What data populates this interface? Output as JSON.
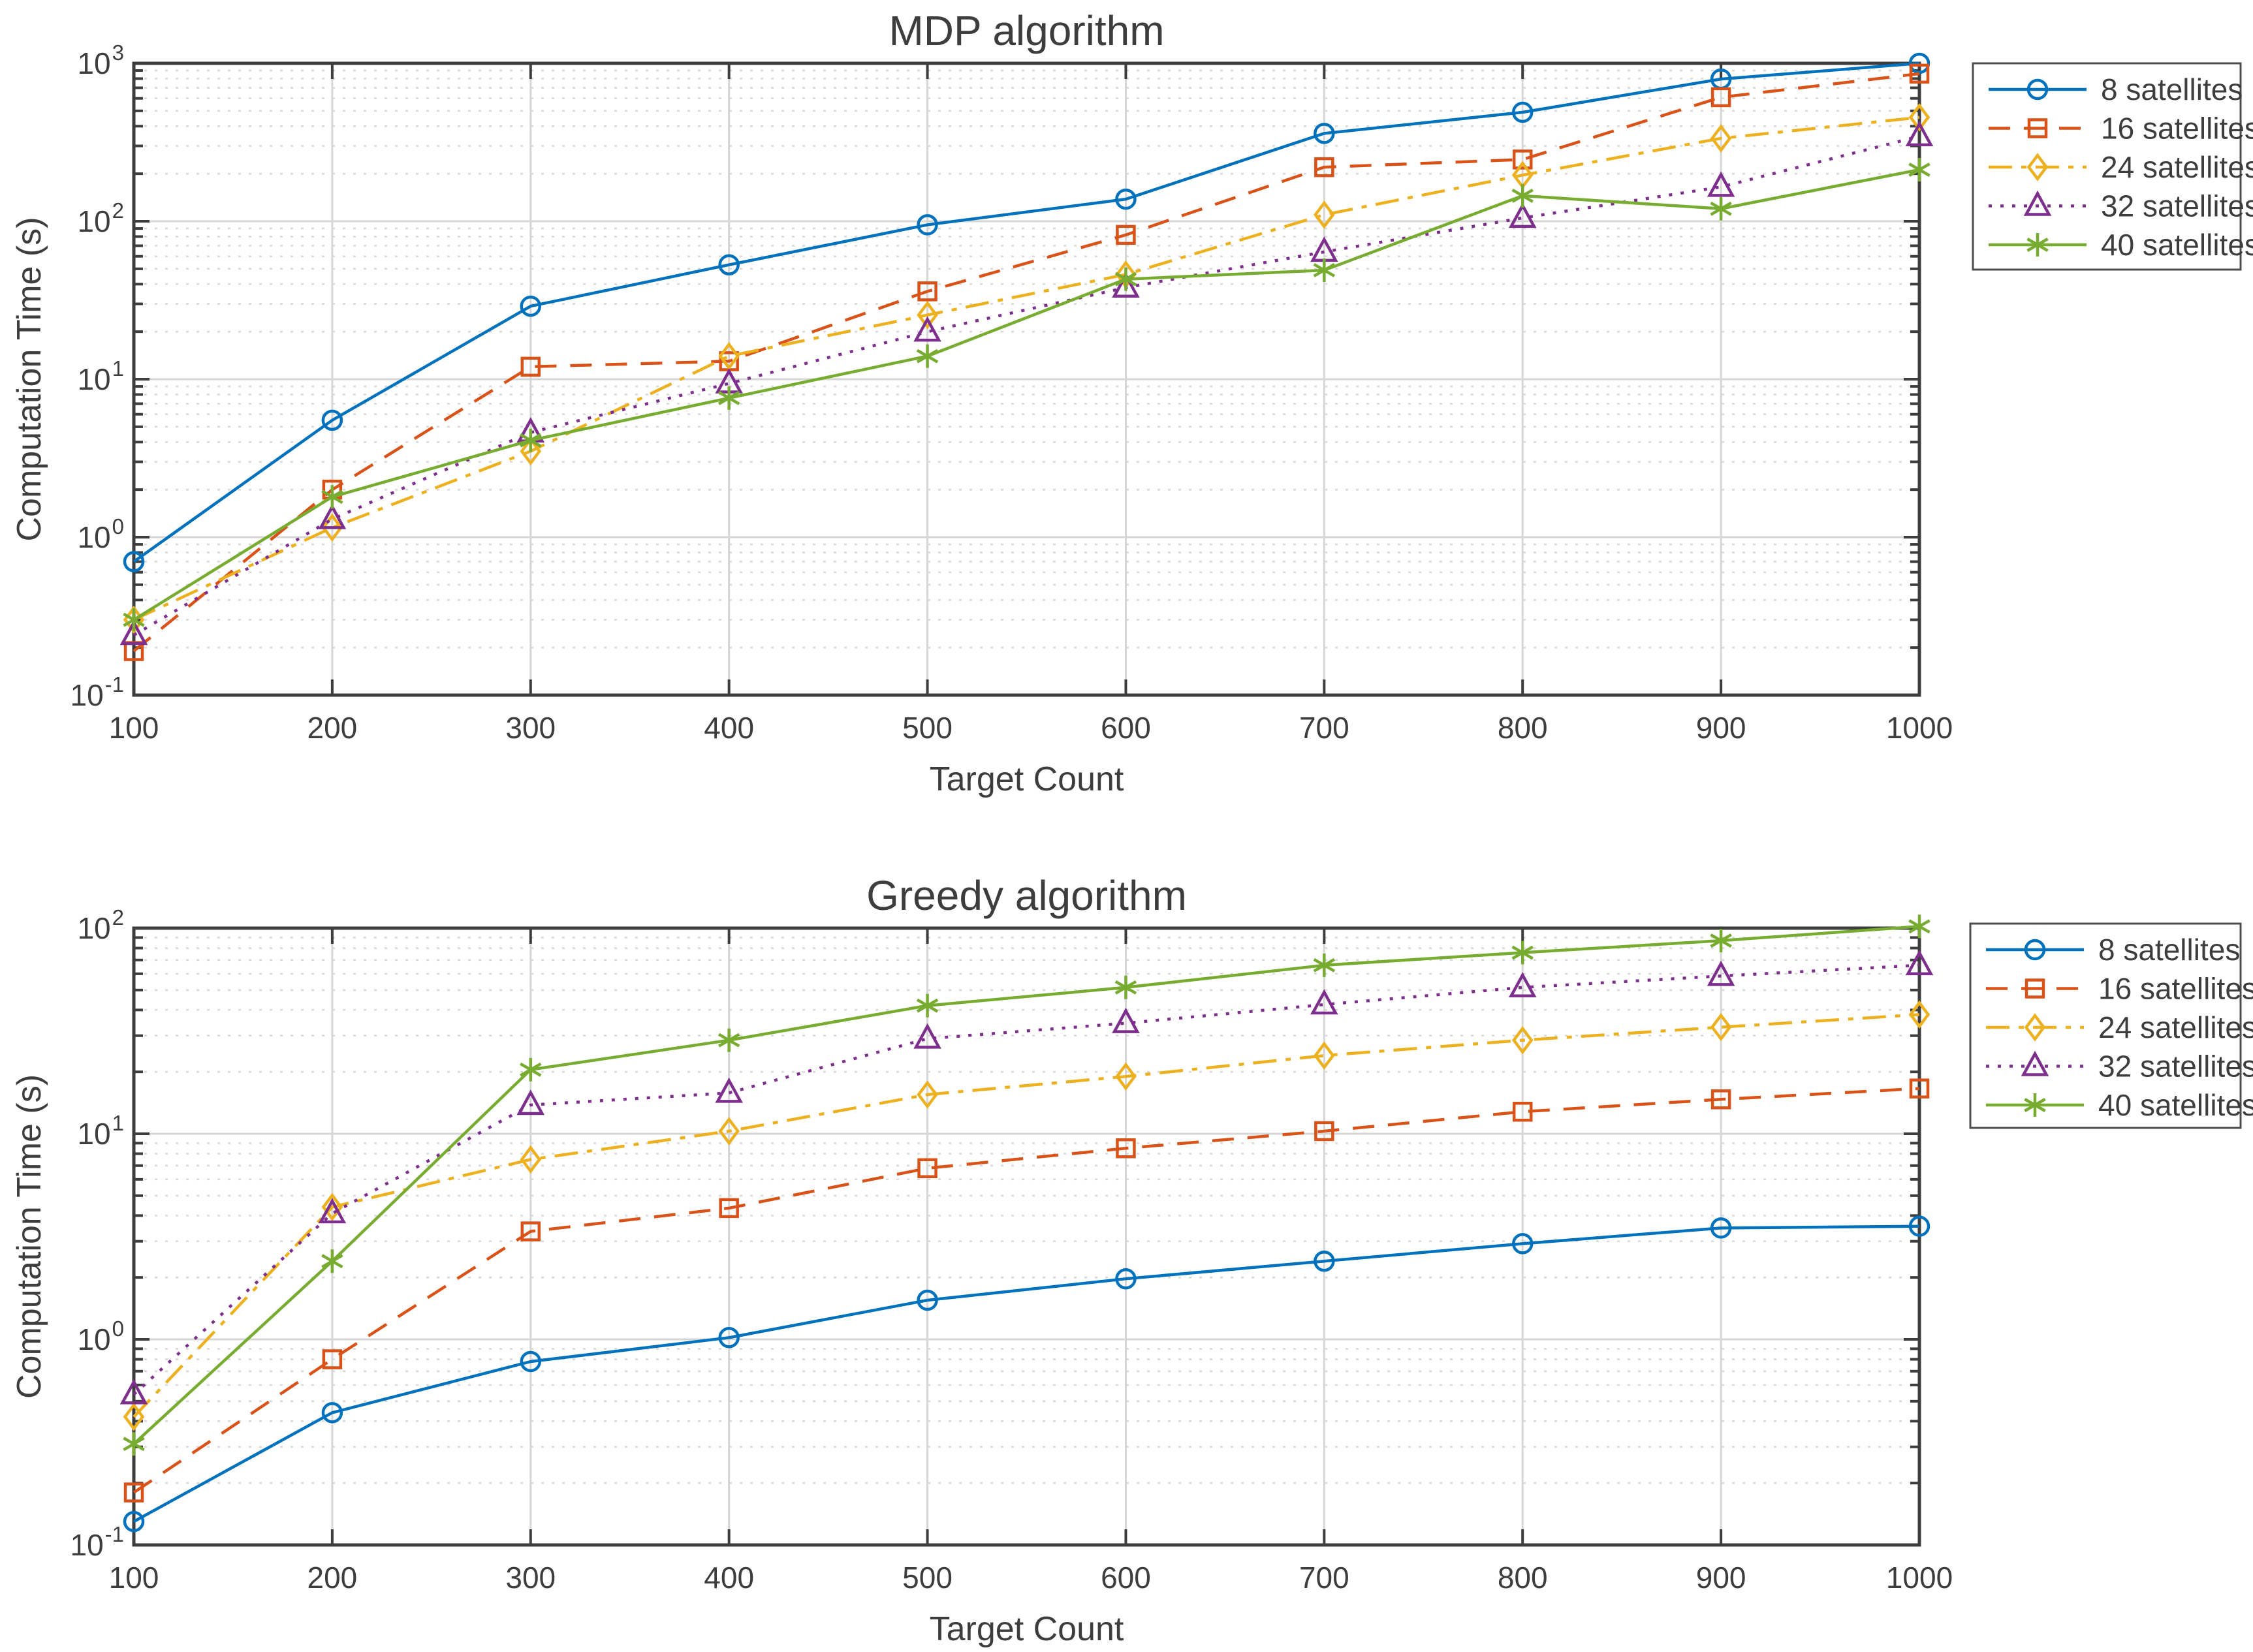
{
  "figure": {
    "background": "#ffffff",
    "axis_color": "#3d3d3d",
    "text_color": "#3d3d3d",
    "title_color": "#1a1a1a",
    "grid_major_color": "#d6d6d6",
    "grid_minor_color": "#d9d9d9",
    "legend_border_color": "#4d4d4d",
    "y_tick_base": "10"
  },
  "chart_data": [
    {
      "type": "line",
      "title": "MDP algorithm",
      "xlabel": "Target Count",
      "ylabel": "Computation Time (s)",
      "xscale": "linear",
      "yscale": "log",
      "xlim": [
        100,
        1000
      ],
      "ylim": [
        0.1,
        1000
      ],
      "x_ticks": [
        100,
        200,
        300,
        400,
        500,
        600,
        700,
        800,
        900,
        1000
      ],
      "y_tick_exponents": [
        -1,
        0,
        1,
        2,
        3
      ],
      "grid": {
        "x_major": true,
        "y_major": true,
        "y_minor": true
      },
      "legend_position": "outside-northeast",
      "x": [
        100,
        200,
        300,
        400,
        500,
        600,
        700,
        800,
        900,
        1000
      ],
      "series": [
        {
          "name": "8 satellites",
          "color": "#0072BD",
          "line": "solid",
          "marker": "circle",
          "values": [
            0.7,
            5.5,
            29,
            53,
            95,
            138,
            360,
            490,
            795,
            1000
          ]
        },
        {
          "name": "16 satellites",
          "color": "#D95319",
          "line": "dashed",
          "marker": "square",
          "values": [
            0.19,
            2.0,
            12,
            13,
            36,
            82,
            220,
            246,
            610,
            860
          ]
        },
        {
          "name": "24 satellites",
          "color": "#EDB120",
          "line": "dashdot",
          "marker": "diamond",
          "values": [
            0.3,
            1.15,
            3.5,
            14,
            25.5,
            46,
            110,
            196,
            335,
            455
          ]
        },
        {
          "name": "32 satellites",
          "color": "#7E2F8E",
          "line": "dotted",
          "marker": "triangle",
          "values": [
            0.24,
            1.3,
            4.6,
            9.4,
            20,
            38,
            64,
            105,
            165,
            345
          ]
        },
        {
          "name": "40 satellites",
          "color": "#77AC30",
          "line": "solid",
          "marker": "asterisk",
          "values": [
            0.3,
            1.8,
            4.1,
            7.6,
            14,
            43,
            49,
            145,
            120,
            212
          ]
        }
      ]
    },
    {
      "type": "line",
      "title": "Greedy algorithm",
      "xlabel": "Target Count",
      "ylabel": "Computation Time (s)",
      "xscale": "linear",
      "yscale": "log",
      "xlim": [
        100,
        1000
      ],
      "ylim": [
        0.1,
        100
      ],
      "x_ticks": [
        100,
        200,
        300,
        400,
        500,
        600,
        700,
        800,
        900,
        1000
      ],
      "y_tick_exponents": [
        -1,
        0,
        1,
        2
      ],
      "grid": {
        "x_major": true,
        "y_major": true,
        "y_minor": true
      },
      "legend_position": "outside-northeast",
      "x": [
        100,
        200,
        300,
        400,
        500,
        600,
        700,
        800,
        900,
        1000
      ],
      "series": [
        {
          "name": "8 satellites",
          "color": "#0072BD",
          "line": "solid",
          "marker": "circle",
          "values": [
            0.13,
            0.44,
            0.78,
            1.02,
            1.55,
            1.97,
            2.4,
            2.92,
            3.48,
            3.55
          ]
        },
        {
          "name": "16 satellites",
          "color": "#D95319",
          "line": "dashed",
          "marker": "square",
          "values": [
            0.18,
            0.8,
            3.35,
            4.35,
            6.8,
            8.5,
            10.3,
            12.8,
            14.7,
            16.6
          ]
        },
        {
          "name": "24 satellites",
          "color": "#EDB120",
          "line": "dashdot",
          "marker": "diamond",
          "values": [
            0.42,
            4.4,
            7.5,
            10.3,
            15.5,
            19,
            24,
            28.5,
            33,
            38
          ]
        },
        {
          "name": "32 satellites",
          "color": "#7E2F8E",
          "line": "dotted",
          "marker": "triangle",
          "values": [
            0.54,
            4.1,
            13.8,
            15.8,
            29,
            34.5,
            42.5,
            51.5,
            58.5,
            66
          ]
        },
        {
          "name": "40 satellites",
          "color": "#77AC30",
          "line": "solid",
          "marker": "asterisk",
          "values": [
            0.31,
            2.4,
            20.5,
            28.5,
            42,
            51.5,
            66,
            76,
            87,
            102
          ]
        }
      ]
    }
  ]
}
